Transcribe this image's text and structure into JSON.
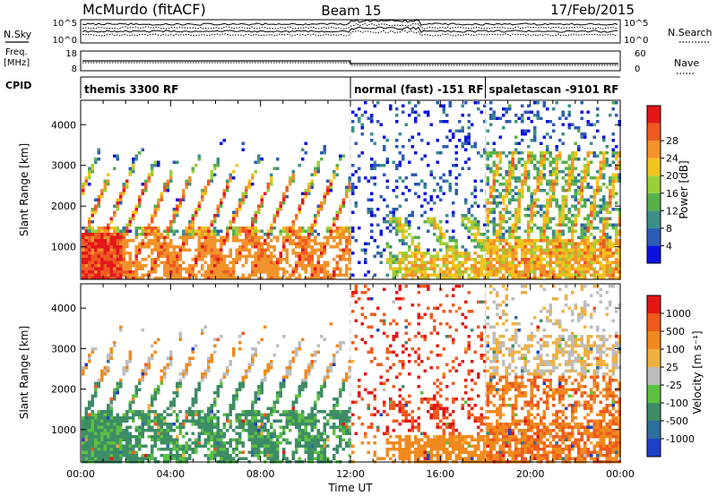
{
  "header": {
    "station": "McMurdo (fitACF)",
    "beam": "Beam 15",
    "date": "17/Feb/2015"
  },
  "strips": {
    "nsky": {
      "label": "N.Sky",
      "ticks": [
        "10^5",
        "10^0"
      ]
    },
    "nsearch": {
      "label": "N.Search",
      "ticks": [
        "10^5",
        "10^0"
      ]
    },
    "freq": {
      "label": "Freq.",
      "unit": "[MHz]",
      "ticks": [
        "18",
        "8"
      ]
    },
    "nave": {
      "label": "Nave",
      "ticks": [
        "60",
        "0"
      ]
    },
    "cpid": {
      "label": "CPID",
      "segments": [
        {
          "start": 0,
          "end": 12,
          "text": "themis 3300 RF"
        },
        {
          "start": 12,
          "end": 18,
          "text": "normal (fast) -151 RF"
        },
        {
          "start": 18,
          "end": 24,
          "text": "spaletascan -9101 RF"
        }
      ]
    }
  },
  "chart_data": [
    {
      "type": "heatmap",
      "name": "power",
      "ylabel": "Slant Range [km]",
      "xlabel": "",
      "xlim": [
        0,
        24
      ],
      "ylim": [
        200,
        4600
      ],
      "yticks": [
        "1000",
        "2000",
        "3000",
        "4000"
      ],
      "colorbar": {
        "label": "Power [dB]",
        "ticks": [
          "4",
          "8",
          "12",
          "16",
          "20",
          "24",
          "28"
        ],
        "range": [
          0,
          32
        ],
        "colors": [
          "#0d12e0",
          "#2e5bb4",
          "#3c8f86",
          "#58b04c",
          "#9ccf3a",
          "#f2c41e",
          "#f2922a",
          "#ee5a22",
          "#e4161a"
        ]
      },
      "mode_boundaries": [
        12,
        18
      ]
    },
    {
      "type": "heatmap",
      "name": "velocity",
      "ylabel": "Slant Range [km]",
      "xlabel": "Time UT",
      "xlim": [
        0,
        24
      ],
      "ylim": [
        200,
        4600
      ],
      "xticks": [
        "00:00",
        "04:00",
        "08:00",
        "12:00",
        "16:00",
        "20:00",
        "00:00"
      ],
      "yticks": [
        "1000",
        "2000",
        "3000",
        "4000"
      ],
      "colorbar": {
        "label": "Velocity [m s⁻¹]",
        "ticks": [
          "1000",
          "500",
          "100",
          "25",
          "-25",
          "-100",
          "-500",
          "-1000"
        ],
        "colors": [
          "#1f3fc8",
          "#2f6d9c",
          "#3e8c66",
          "#5cc040",
          "#bdbdbd",
          "#f0b040",
          "#f08a1e",
          "#ee5a1e",
          "#e31616"
        ]
      },
      "mode_boundaries": [
        12,
        18
      ]
    }
  ]
}
